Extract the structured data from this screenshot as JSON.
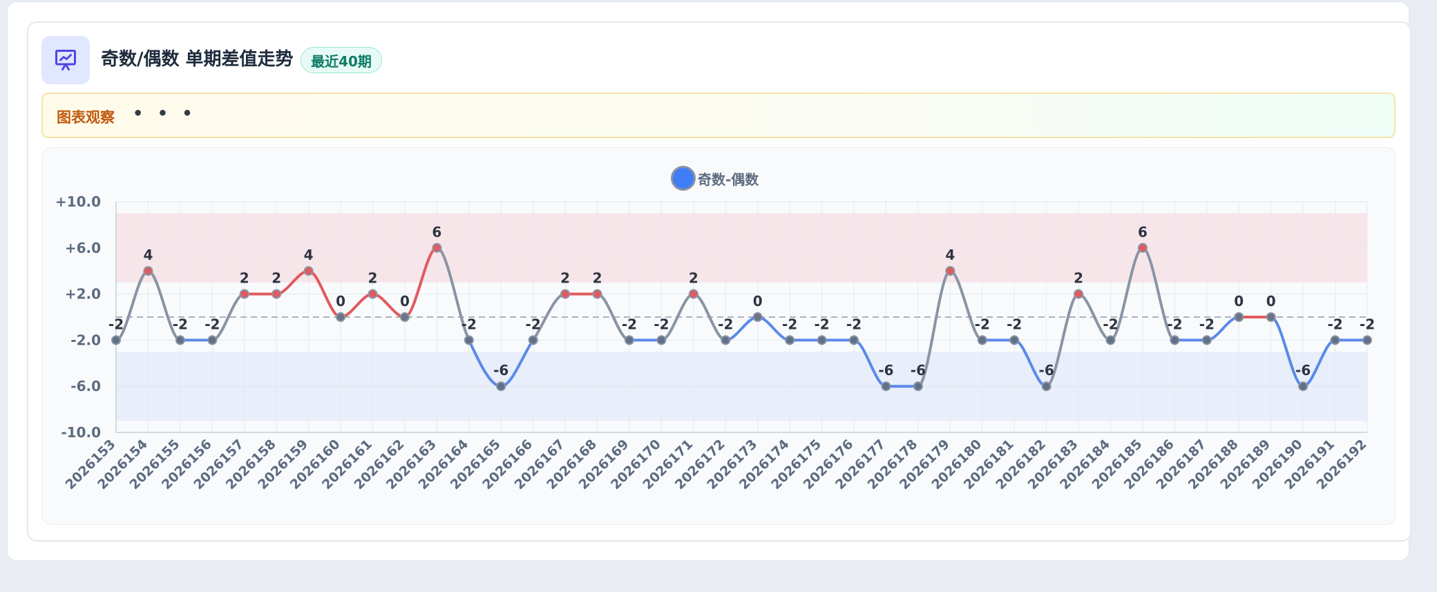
{
  "header": {
    "title": "奇数/偶数 单期差值走势",
    "badge": "最近40期",
    "icon": "presentation-chart-icon"
  },
  "observation": {
    "label": "图表观察",
    "dots": "• • •"
  },
  "legend": {
    "label": "奇数-偶数"
  },
  "colors": {
    "positive": "#e15a5e",
    "negative": "#5a8ae8",
    "neutral": "#8a94a4",
    "positiveBand": "#f6e6ea",
    "negativeBand": "#e8eefa",
    "accent": "#3f7ef7"
  },
  "chart_data": {
    "type": "line",
    "smooth": true,
    "x": [
      "2026153",
      "2026154",
      "2026155",
      "2026156",
      "2026157",
      "2026158",
      "2026159",
      "2026160",
      "2026161",
      "2026162",
      "2026163",
      "2026164",
      "2026165",
      "2026166",
      "2026167",
      "2026168",
      "2026169",
      "2026170",
      "2026171",
      "2026172",
      "2026173",
      "2026174",
      "2026175",
      "2026176",
      "2026177",
      "2026178",
      "2026179",
      "2026180",
      "2026181",
      "2026182",
      "2026183",
      "2026184",
      "2026185",
      "2026186",
      "2026187",
      "2026188",
      "2026189",
      "2026190",
      "2026191",
      "2026192"
    ],
    "series": [
      {
        "name": "奇数-偶数",
        "values": [
          -2,
          4,
          -2,
          -2,
          2,
          2,
          4,
          0,
          2,
          0,
          6,
          -2,
          -6,
          -2,
          2,
          2,
          -2,
          -2,
          2,
          -2,
          0,
          -2,
          -2,
          -2,
          -6,
          -6,
          4,
          -2,
          -2,
          -6,
          2,
          -2,
          6,
          -2,
          -2,
          0,
          0,
          -6,
          -2,
          -2
        ]
      }
    ],
    "yticks": [
      "+10.0",
      "+6.0",
      "+2.0",
      "-2.0",
      "-6.0",
      "-10.0"
    ],
    "ylim": [
      -10,
      10
    ],
    "reference_line": 0,
    "bands": [
      {
        "from": 3,
        "to": 9,
        "color": "positive"
      },
      {
        "from": -9,
        "to": -3,
        "color": "negative"
      }
    ],
    "grid": true,
    "legend_position": "top-center"
  }
}
